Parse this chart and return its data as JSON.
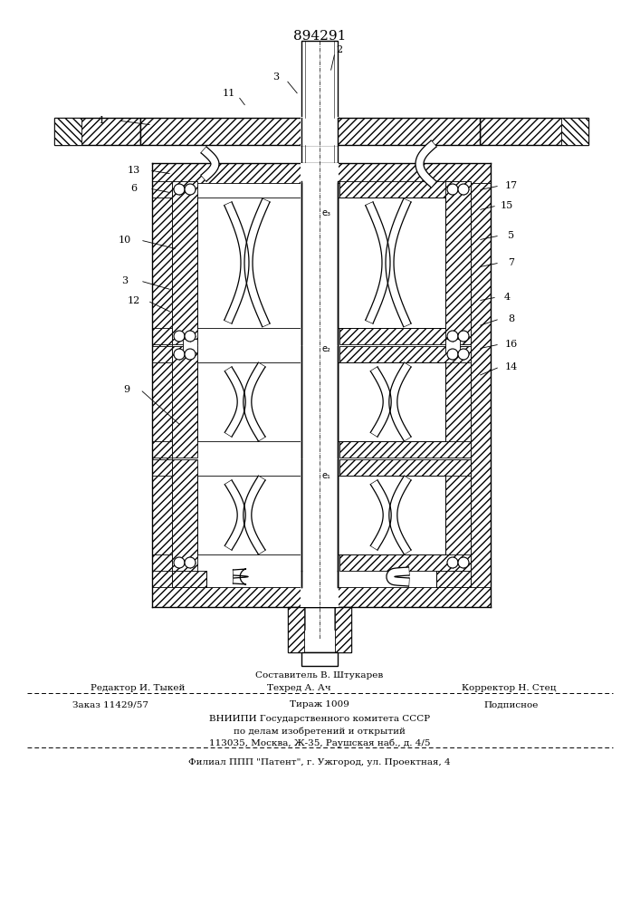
{
  "patent_number": "894291",
  "bg_color": "#ffffff",
  "line_color": "#000000",
  "footer": {
    "sestavitel_top": "Составитель В. Штукарев",
    "redaktor": "Редактор И. Тыкей",
    "tehred": "Техред А. Ач",
    "korrektor": "Корректор Н. Стец",
    "zakaz": "Заказ 11429/57",
    "tirazh": "Тираж 1009",
    "podpisnoe": "Подписное",
    "org1": "ВНИИПИ Государственного комитета СССР",
    "org2": "по делам изобретений и открытий",
    "org3": "113035, Москва, Ж-35, Раушская наб., д. 4/5",
    "filial": "Филиал ППП \"Патент\", г. Ужгород, ул. Проектная, 4"
  }
}
